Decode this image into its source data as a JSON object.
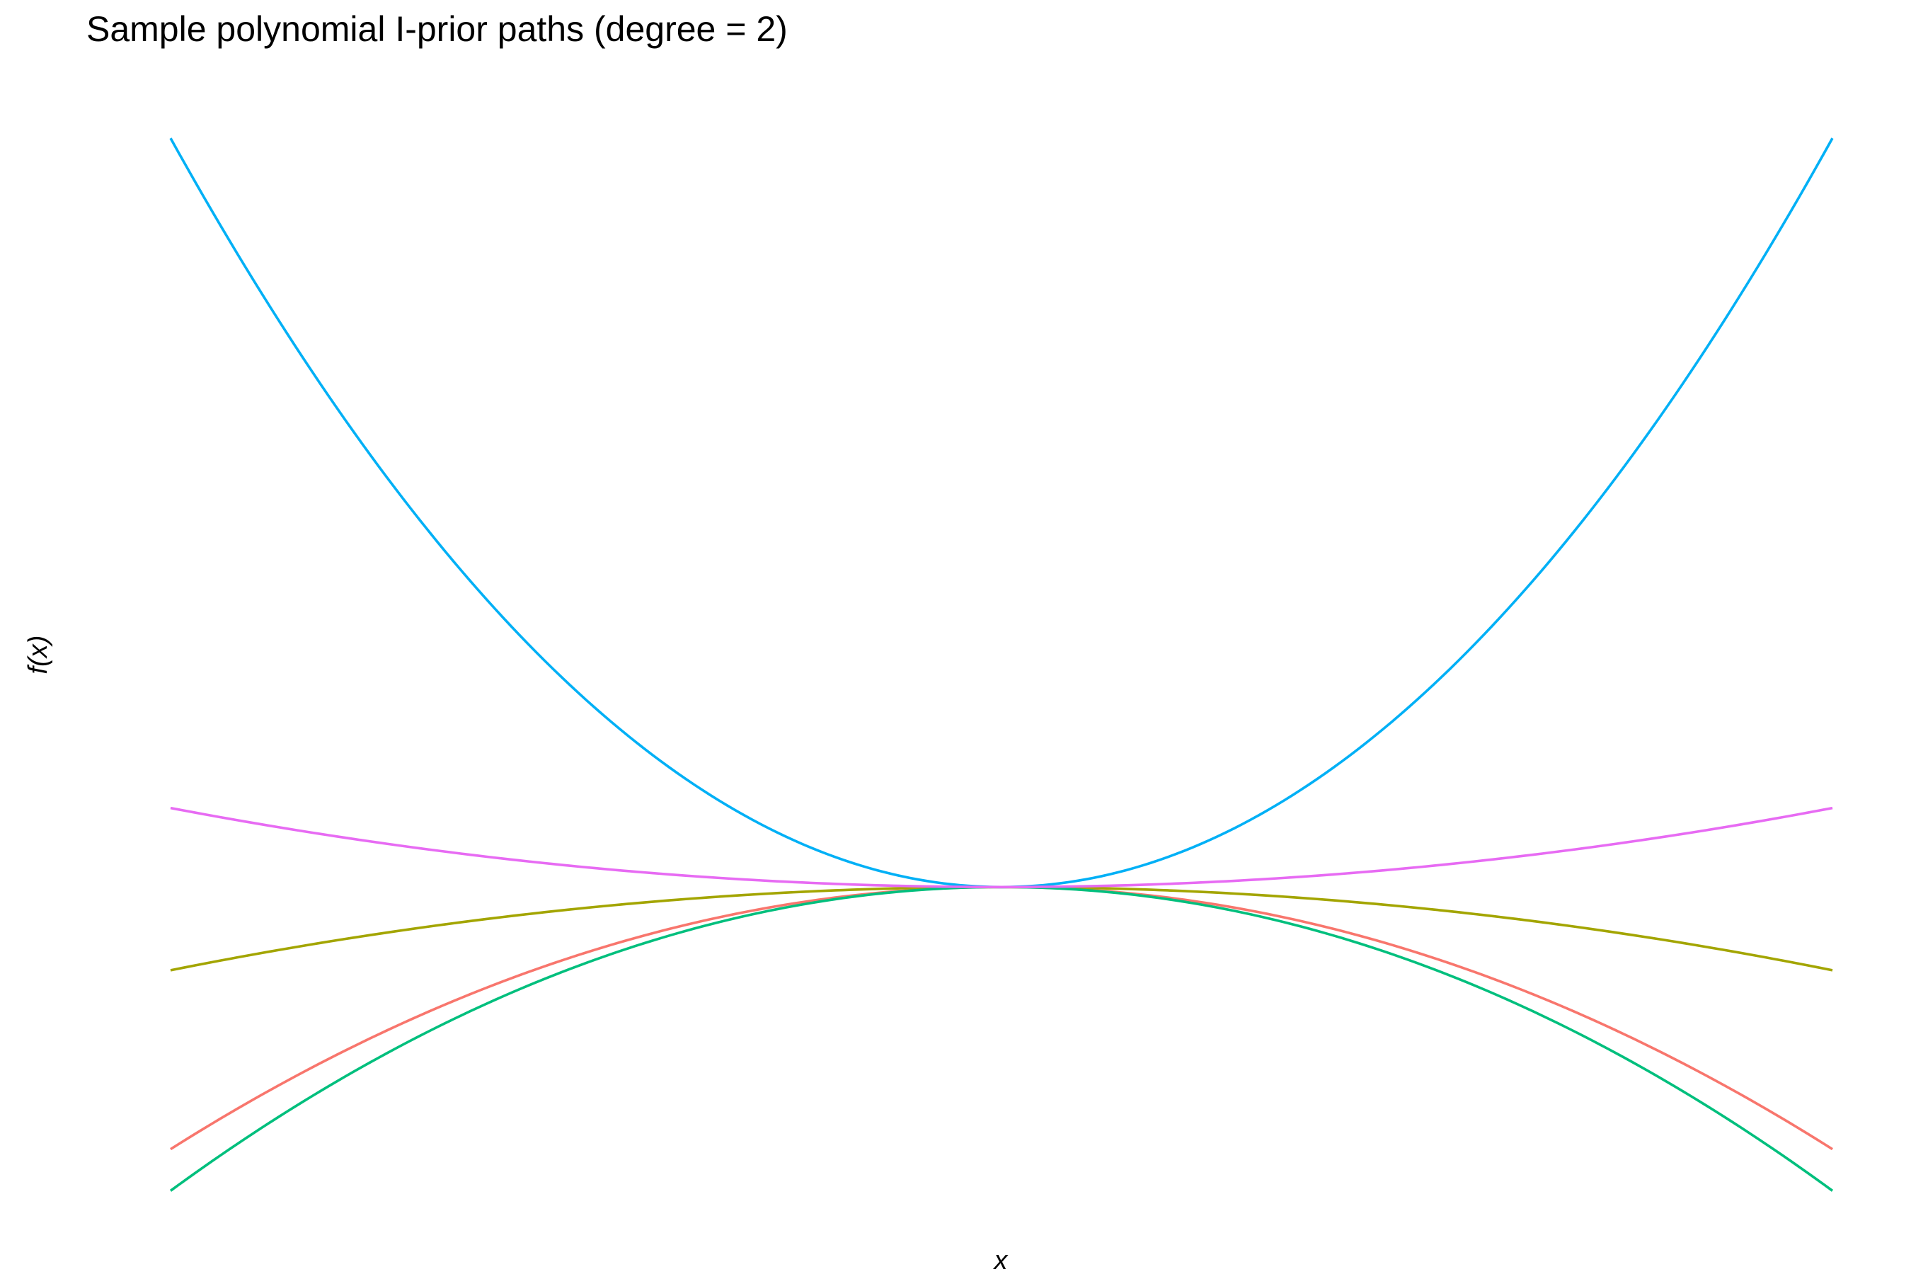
{
  "chart_data": {
    "type": "line",
    "title": "Sample polynomial I-prior paths (degree = 2)",
    "xlabel": "x",
    "ylabel": "f(x)",
    "x_domain": [
      -1,
      1
    ],
    "y_domain": [
      -7.6,
      18.6
    ],
    "grid": false,
    "legend": "none",
    "series": [
      {
        "color": "#F8766D",
        "a": -6.3
      },
      {
        "color": "#A3A500",
        "a": -2.0
      },
      {
        "color": "#00BF7D",
        "a": -7.3
      },
      {
        "color": "#00B0F6",
        "a": 18.0
      },
      {
        "color": "#E76BF3",
        "a": 1.9
      }
    ]
  }
}
